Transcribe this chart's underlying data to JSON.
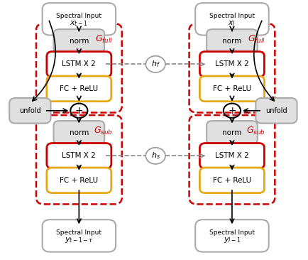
{
  "fig_width": 4.34,
  "fig_height": 3.66,
  "dpi": 100,
  "bg_color": "#ffffff",
  "red_color": "#cc0000",
  "gold_color": "#e6a817",
  "gray_color": "#aaaaaa",
  "labels": {
    "spectral_input": "Spectral Input",
    "xt1": "$x_{t-1}$",
    "xl": "$x_l$",
    "yt1tau": "$y_{t-1-\\tau}$",
    "yl1": "$y_{l-1}$",
    "norm": "norm",
    "lstm": "LSTM X 2",
    "fc": "FC + ReLU",
    "unfold": "unfold",
    "gfull": "$G_{full}$",
    "gsub": "$G_{sub}$",
    "hf": "$h_f$",
    "hs": "$h_s$"
  }
}
